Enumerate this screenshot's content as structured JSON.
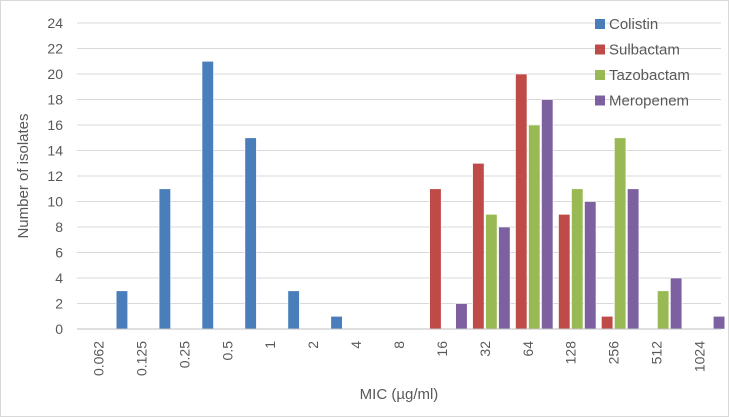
{
  "chart_data": {
    "type": "bar",
    "title": "",
    "xlabel": "MIC (µg/ml)",
    "ylabel": "Number of isolates",
    "ylim": [
      0,
      24
    ],
    "ytick_step": 2,
    "grid": "horizontal",
    "legend_position": "top-right",
    "categories": [
      "0.062",
      "0.125",
      "0.25",
      "0.5",
      "1",
      "2",
      "4",
      "8",
      "16",
      "32",
      "64",
      "128",
      "256",
      "512",
      "1024"
    ],
    "series": [
      {
        "name": "Colistin",
        "color": "#4a7ebb",
        "values": [
          0,
          3,
          11,
          21,
          15,
          3,
          1,
          0,
          0,
          0,
          0,
          0,
          0,
          0,
          0
        ]
      },
      {
        "name": "Sulbactam",
        "color": "#be4b48",
        "values": [
          0,
          0,
          0,
          0,
          0,
          0,
          0,
          0,
          11,
          13,
          20,
          9,
          1,
          0,
          0
        ]
      },
      {
        "name": "Tazobactam",
        "color": "#98b954",
        "values": [
          0,
          0,
          0,
          0,
          0,
          0,
          0,
          0,
          0,
          9,
          16,
          11,
          15,
          3,
          0
        ]
      },
      {
        "name": "Meropenem",
        "color": "#7d60a0",
        "values": [
          0,
          0,
          0,
          0,
          0,
          0,
          0,
          0,
          2,
          8,
          18,
          10,
          11,
          4,
          1
        ]
      }
    ]
  }
}
